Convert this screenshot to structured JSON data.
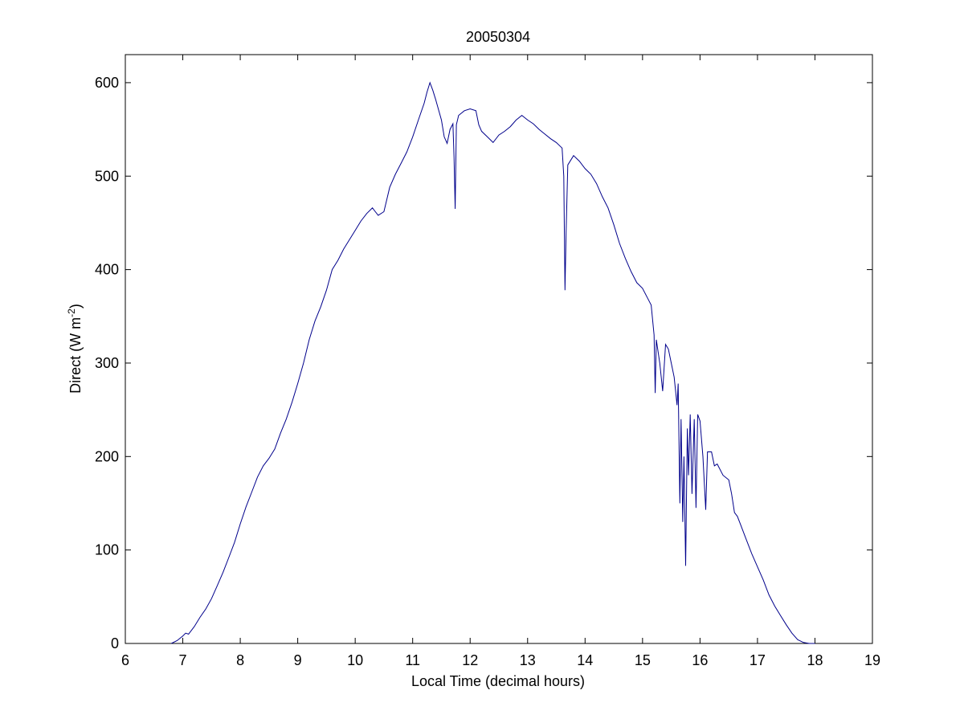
{
  "chart_data": {
    "type": "line",
    "title": "20050304",
    "xlabel": "Local Time (decimal hours)",
    "ylabel_main": "Direct (W m",
    "ylabel_sup": "-2",
    "ylabel_close": ")",
    "xlim": [
      6,
      19
    ],
    "ylim": [
      0,
      630
    ],
    "xticks": [
      6,
      7,
      8,
      9,
      10,
      11,
      12,
      13,
      14,
      15,
      16,
      17,
      18,
      19
    ],
    "yticks": [
      0,
      100,
      200,
      300,
      400,
      500,
      600
    ],
    "grid": false,
    "line_color": "#00008b",
    "series": [
      {
        "points": [
          [
            6.8,
            0
          ],
          [
            6.9,
            3
          ],
          [
            7.0,
            8
          ],
          [
            7.05,
            11
          ],
          [
            7.1,
            10
          ],
          [
            7.2,
            18
          ],
          [
            7.3,
            28
          ],
          [
            7.4,
            37
          ],
          [
            7.5,
            48
          ],
          [
            7.6,
            62
          ],
          [
            7.7,
            76
          ],
          [
            7.8,
            92
          ],
          [
            7.9,
            108
          ],
          [
            8.0,
            128
          ],
          [
            8.1,
            146
          ],
          [
            8.2,
            162
          ],
          [
            8.3,
            178
          ],
          [
            8.4,
            190
          ],
          [
            8.5,
            198
          ],
          [
            8.6,
            208
          ],
          [
            8.7,
            225
          ],
          [
            8.8,
            240
          ],
          [
            8.9,
            258
          ],
          [
            9.0,
            278
          ],
          [
            9.1,
            300
          ],
          [
            9.2,
            325
          ],
          [
            9.3,
            345
          ],
          [
            9.4,
            360
          ],
          [
            9.5,
            378
          ],
          [
            9.6,
            400
          ],
          [
            9.7,
            410
          ],
          [
            9.8,
            422
          ],
          [
            9.9,
            432
          ],
          [
            10.0,
            442
          ],
          [
            10.1,
            452
          ],
          [
            10.2,
            460
          ],
          [
            10.3,
            466
          ],
          [
            10.35,
            462
          ],
          [
            10.4,
            458
          ],
          [
            10.5,
            462
          ],
          [
            10.6,
            488
          ],
          [
            10.7,
            502
          ],
          [
            10.8,
            514
          ],
          [
            10.9,
            526
          ],
          [
            11.0,
            542
          ],
          [
            11.1,
            560
          ],
          [
            11.2,
            578
          ],
          [
            11.25,
            590
          ],
          [
            11.3,
            600
          ],
          [
            11.35,
            592
          ],
          [
            11.4,
            582
          ],
          [
            11.5,
            560
          ],
          [
            11.55,
            542
          ],
          [
            11.6,
            535
          ],
          [
            11.65,
            550
          ],
          [
            11.7,
            556
          ],
          [
            11.72,
            520
          ],
          [
            11.74,
            465
          ],
          [
            11.76,
            555
          ],
          [
            11.8,
            565
          ],
          [
            11.9,
            570
          ],
          [
            12.0,
            572
          ],
          [
            12.1,
            570
          ],
          [
            12.15,
            555
          ],
          [
            12.2,
            548
          ],
          [
            12.3,
            542
          ],
          [
            12.4,
            536
          ],
          [
            12.5,
            544
          ],
          [
            12.6,
            548
          ],
          [
            12.7,
            553
          ],
          [
            12.8,
            560
          ],
          [
            12.9,
            565
          ],
          [
            13.0,
            560
          ],
          [
            13.1,
            556
          ],
          [
            13.2,
            550
          ],
          [
            13.3,
            545
          ],
          [
            13.4,
            540
          ],
          [
            13.5,
            536
          ],
          [
            13.6,
            530
          ],
          [
            13.63,
            500
          ],
          [
            13.65,
            378
          ],
          [
            13.67,
            440
          ],
          [
            13.7,
            512
          ],
          [
            13.8,
            522
          ],
          [
            13.9,
            516
          ],
          [
            14.0,
            508
          ],
          [
            14.1,
            502
          ],
          [
            14.2,
            492
          ],
          [
            14.3,
            478
          ],
          [
            14.4,
            466
          ],
          [
            14.5,
            448
          ],
          [
            14.6,
            428
          ],
          [
            14.7,
            412
          ],
          [
            14.8,
            398
          ],
          [
            14.9,
            386
          ],
          [
            15.0,
            380
          ],
          [
            15.1,
            368
          ],
          [
            15.15,
            362
          ],
          [
            15.2,
            330
          ],
          [
            15.22,
            268
          ],
          [
            15.24,
            325
          ],
          [
            15.3,
            300
          ],
          [
            15.35,
            270
          ],
          [
            15.4,
            320
          ],
          [
            15.45,
            315
          ],
          [
            15.5,
            300
          ],
          [
            15.55,
            285
          ],
          [
            15.6,
            255
          ],
          [
            15.62,
            278
          ],
          [
            15.65,
            150
          ],
          [
            15.67,
            240
          ],
          [
            15.7,
            130
          ],
          [
            15.72,
            200
          ],
          [
            15.75,
            83
          ],
          [
            15.78,
            230
          ],
          [
            15.8,
            180
          ],
          [
            15.83,
            245
          ],
          [
            15.86,
            160
          ],
          [
            15.9,
            240
          ],
          [
            15.93,
            145
          ],
          [
            15.96,
            245
          ],
          [
            16.0,
            238
          ],
          [
            16.05,
            200
          ],
          [
            16.1,
            143
          ],
          [
            16.13,
            205
          ],
          [
            16.2,
            205
          ],
          [
            16.25,
            190
          ],
          [
            16.3,
            192
          ],
          [
            16.4,
            180
          ],
          [
            16.5,
            175
          ],
          [
            16.55,
            160
          ],
          [
            16.6,
            140
          ],
          [
            16.65,
            136
          ],
          [
            16.7,
            128
          ],
          [
            16.8,
            112
          ],
          [
            16.9,
            96
          ],
          [
            17.0,
            82
          ],
          [
            17.1,
            68
          ],
          [
            17.2,
            52
          ],
          [
            17.3,
            40
          ],
          [
            17.4,
            30
          ],
          [
            17.5,
            20
          ],
          [
            17.6,
            11
          ],
          [
            17.7,
            4
          ],
          [
            17.8,
            1
          ],
          [
            17.9,
            0
          ],
          [
            18.0,
            0
          ]
        ]
      }
    ]
  }
}
